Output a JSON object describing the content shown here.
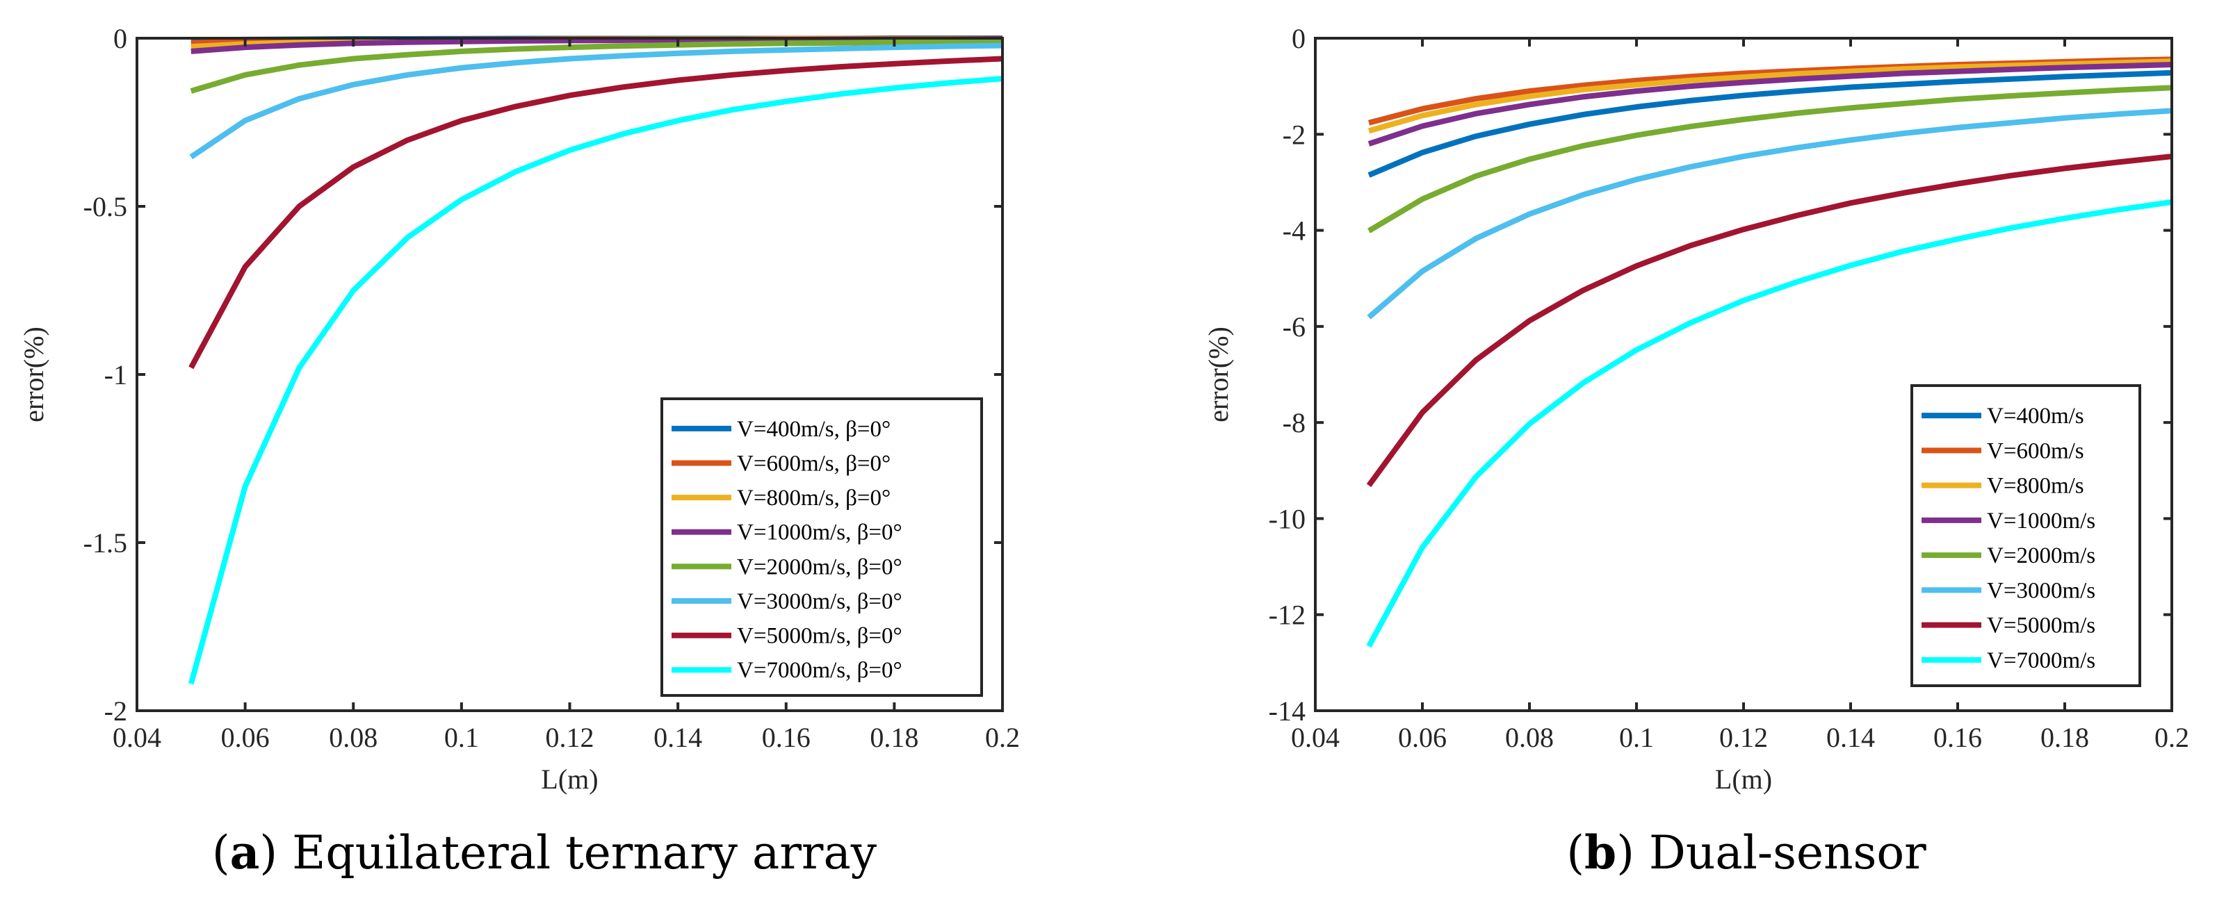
{
  "chart_data": [
    {
      "type": "line",
      "caption_letter": "a",
      "caption_text": " Equilateral ternary array",
      "xlabel": "L(m)",
      "ylabel": "error(%)",
      "xlim": [
        0.04,
        0.2
      ],
      "ylim": [
        -2,
        0
      ],
      "xticks": [
        "0.04",
        "0.06",
        "0.08",
        "0.1",
        "0.12",
        "0.14",
        "0.16",
        "0.18",
        "0.2"
      ],
      "yticks": [
        "0",
        "-0.5",
        "-1",
        "-1.5",
        "-2"
      ],
      "legend_position": "bottom-right",
      "grid": false,
      "x": [
        0.05,
        0.06,
        0.07,
        0.08,
        0.09,
        0.1,
        0.11,
        0.12,
        0.13,
        0.14,
        0.15,
        0.16,
        0.17,
        0.18,
        0.19,
        0.2
      ],
      "series": [
        {
          "name": "V=400m/s, β=0°",
          "color": "#0072BD",
          "values": [
            -0.006,
            -0.004,
            -0.003,
            -0.002,
            -0.002,
            -0.0015,
            -0.001,
            -0.001,
            -0.001,
            -0.001,
            -0.001,
            -0.001,
            -0.001,
            0,
            0,
            0
          ]
        },
        {
          "name": "V=600m/s, β=0°",
          "color": "#D95319",
          "values": [
            -0.014,
            -0.01,
            -0.007,
            -0.005,
            -0.004,
            -0.0035,
            -0.003,
            -0.002,
            -0.002,
            -0.002,
            -0.002,
            -0.001,
            -0.001,
            -0.001,
            -0.001,
            -0.001
          ]
        },
        {
          "name": "V=800m/s, β=0°",
          "color": "#EDB120",
          "values": [
            -0.025,
            -0.017,
            -0.013,
            -0.01,
            -0.008,
            -0.006,
            -0.005,
            -0.004,
            -0.004,
            -0.003,
            -0.003,
            -0.002,
            -0.002,
            -0.002,
            -0.002,
            -0.002
          ]
        },
        {
          "name": "V=1000m/s, β=0°",
          "color": "#7E2F8E",
          "values": [
            -0.039,
            -0.027,
            -0.02,
            -0.015,
            -0.012,
            -0.01,
            -0.008,
            -0.007,
            -0.006,
            -0.005,
            -0.004,
            -0.004,
            -0.003,
            -0.003,
            -0.003,
            -0.002
          ]
        },
        {
          "name": "V=2000m/s, β=0°",
          "color": "#77AC30",
          "values": [
            -0.157,
            -0.109,
            -0.08,
            -0.061,
            -0.049,
            -0.039,
            -0.032,
            -0.027,
            -0.023,
            -0.02,
            -0.017,
            -0.015,
            -0.014,
            -0.012,
            -0.011,
            -0.01
          ]
        },
        {
          "name": "V=3000m/s, β=0°",
          "color": "#4DBEEE",
          "values": [
            -0.353,
            -0.245,
            -0.18,
            -0.138,
            -0.109,
            -0.088,
            -0.073,
            -0.061,
            -0.052,
            -0.045,
            -0.039,
            -0.035,
            -0.031,
            -0.027,
            -0.024,
            -0.022
          ]
        },
        {
          "name": "V=5000m/s, β=0°",
          "color": "#A2142F",
          "values": [
            -0.98,
            -0.68,
            -0.5,
            -0.383,
            -0.303,
            -0.245,
            -0.203,
            -0.17,
            -0.145,
            -0.125,
            -0.109,
            -0.096,
            -0.085,
            -0.076,
            -0.068,
            -0.061
          ]
        },
        {
          "name": "V=7000m/s, β=0°",
          "color": "#00FFFF",
          "values": [
            -1.92,
            -1.333,
            -0.98,
            -0.75,
            -0.593,
            -0.48,
            -0.397,
            -0.333,
            -0.284,
            -0.245,
            -0.213,
            -0.188,
            -0.166,
            -0.148,
            -0.133,
            -0.12
          ]
        }
      ]
    },
    {
      "type": "line",
      "caption_letter": "b",
      "caption_text": " Dual-sensor",
      "xlabel": "L(m)",
      "ylabel": "error(%)",
      "xlim": [
        0.04,
        0.2
      ],
      "ylim": [
        -14,
        0
      ],
      "xticks": [
        "0.04",
        "0.06",
        "0.08",
        "0.1",
        "0.12",
        "0.14",
        "0.16",
        "0.18",
        "0.2"
      ],
      "yticks": [
        "0",
        "-2",
        "-4",
        "-6",
        "-8",
        "-10",
        "-12",
        "-14"
      ],
      "legend_position": "bottom-right",
      "grid": false,
      "x": [
        0.05,
        0.06,
        0.07,
        0.08,
        0.09,
        0.1,
        0.11,
        0.12,
        0.13,
        0.14,
        0.15,
        0.16,
        0.17,
        0.18,
        0.19,
        0.2
      ],
      "series": [
        {
          "name": "V=400m/s",
          "color": "#0072BD",
          "values": [
            -2.85,
            -2.38,
            -2.04,
            -1.79,
            -1.59,
            -1.43,
            -1.3,
            -1.19,
            -1.1,
            -1.02,
            -0.96,
            -0.9,
            -0.85,
            -0.8,
            -0.76,
            -0.72
          ]
        },
        {
          "name": "V=600m/s",
          "color": "#D95319",
          "values": [
            -1.76,
            -1.47,
            -1.26,
            -1.1,
            -0.98,
            -0.88,
            -0.8,
            -0.73,
            -0.68,
            -0.63,
            -0.59,
            -0.55,
            -0.52,
            -0.49,
            -0.46,
            -0.44
          ]
        },
        {
          "name": "V=800m/s",
          "color": "#EDB120",
          "values": [
            -1.93,
            -1.61,
            -1.38,
            -1.21,
            -1.07,
            -0.97,
            -0.88,
            -0.81,
            -0.74,
            -0.69,
            -0.64,
            -0.6,
            -0.57,
            -0.54,
            -0.51,
            -0.48
          ]
        },
        {
          "name": "V=1000m/s",
          "color": "#7E2F8E",
          "values": [
            -2.2,
            -1.83,
            -1.57,
            -1.38,
            -1.22,
            -1.1,
            -1.0,
            -0.92,
            -0.85,
            -0.79,
            -0.73,
            -0.69,
            -0.65,
            -0.61,
            -0.58,
            -0.55
          ]
        },
        {
          "name": "V=2000m/s",
          "color": "#77AC30",
          "values": [
            -4.01,
            -3.35,
            -2.87,
            -2.52,
            -2.24,
            -2.02,
            -1.84,
            -1.69,
            -1.56,
            -1.45,
            -1.36,
            -1.27,
            -1.2,
            -1.14,
            -1.08,
            -1.03
          ]
        },
        {
          "name": "V=3000m/s",
          "color": "#4DBEEE",
          "values": [
            -5.81,
            -4.85,
            -4.17,
            -3.66,
            -3.26,
            -2.94,
            -2.68,
            -2.46,
            -2.28,
            -2.12,
            -1.98,
            -1.86,
            -1.76,
            -1.66,
            -1.58,
            -1.51
          ]
        },
        {
          "name": "V=5000m/s",
          "color": "#A2142F",
          "values": [
            -9.31,
            -7.79,
            -6.7,
            -5.88,
            -5.25,
            -4.74,
            -4.32,
            -3.98,
            -3.69,
            -3.43,
            -3.22,
            -3.03,
            -2.86,
            -2.71,
            -2.58,
            -2.46
          ]
        },
        {
          "name": "V=7000m/s",
          "color": "#00FFFF",
          "values": [
            -12.66,
            -10.6,
            -9.13,
            -8.03,
            -7.18,
            -6.49,
            -5.93,
            -5.46,
            -5.07,
            -4.73,
            -4.43,
            -4.18,
            -3.95,
            -3.75,
            -3.57,
            -3.41
          ]
        }
      ]
    }
  ]
}
